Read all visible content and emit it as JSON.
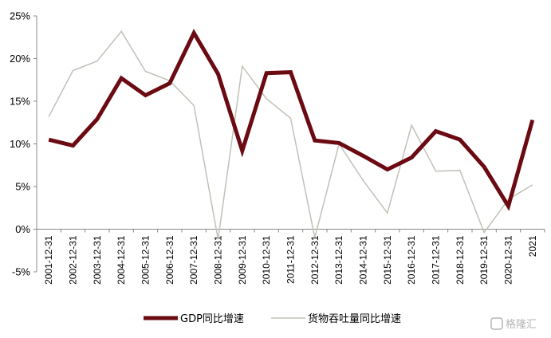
{
  "chart_data": {
    "type": "line",
    "categories": [
      "2001-12-31",
      "2002-12-31",
      "2003-12-31",
      "2004-12-31",
      "2005-12-31",
      "2006-12-31",
      "2007-12-31",
      "2008-12-31",
      "2009-12-31",
      "2010-12-31",
      "2011-12-31",
      "2012-12-31",
      "2013-12-31",
      "2014-12-31",
      "2015-12-31",
      "2016-12-31",
      "2017-12-31",
      "2018-12-31",
      "2019-12-31",
      "2020-12-31",
      "2021"
    ],
    "series": [
      {
        "name": "GDP同比增速",
        "color": "#6b0a12",
        "values": [
          10.5,
          9.8,
          12.9,
          17.7,
          15.7,
          17.1,
          23.0,
          18.2,
          9.2,
          18.3,
          18.4,
          10.4,
          10.1,
          8.6,
          7.0,
          8.4,
          11.5,
          10.5,
          7.3,
          2.7,
          12.8
        ]
      },
      {
        "name": "货物吞吐量同比增速",
        "color": "#c2c0b8",
        "values": [
          13.2,
          18.6,
          19.7,
          23.2,
          18.5,
          17.4,
          14.5,
          -1.2,
          19.1,
          15.3,
          13.0,
          -1.0,
          10.0,
          5.7,
          1.9,
          12.2,
          6.8,
          6.9,
          -0.4,
          3.5,
          5.2
        ]
      }
    ],
    "yticks": [
      "-5%",
      "0%",
      "5%",
      "10%",
      "15%",
      "20%",
      "25%"
    ],
    "ylim": [
      -5,
      25
    ],
    "grid": false,
    "legend_position": "bottom"
  },
  "watermark": "格隆汇"
}
